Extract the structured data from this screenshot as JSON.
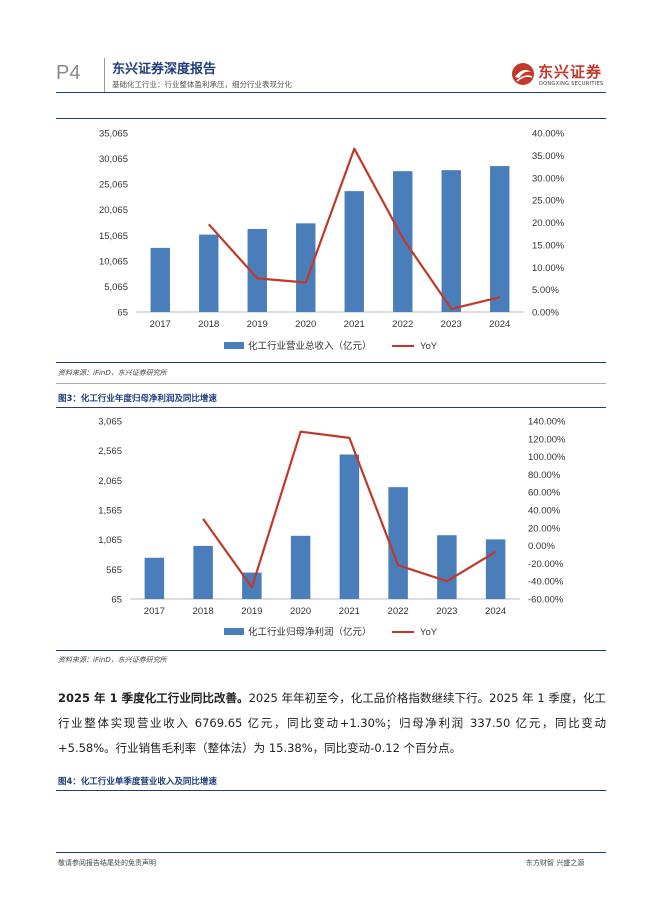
{
  "header": {
    "page_num": "P4",
    "report_title": "东兴证券深度报告",
    "report_subtitle": "基础化工行业：行业整体盈利承压，细分行业表现分化",
    "brand_cn": "东兴证券",
    "brand_en": "DONGXING SECURITIES"
  },
  "charts": {
    "revenue": {
      "source": "资料来源：iFinD，东兴证券研究所"
    },
    "profit": {
      "figure_title": "图3：化工行业年度归母净利润及同比增速",
      "source": "资料来源：iFinD，东兴证券研究所"
    }
  },
  "chart_data": [
    {
      "type": "bar",
      "categories": [
        "2017",
        "2018",
        "2019",
        "2020",
        "2021",
        "2022",
        "2023",
        "2024"
      ],
      "series": [
        {
          "name": "化工行业营业总收入（亿元）",
          "type": "bar",
          "axis": "left",
          "values": [
            12600,
            15200,
            16300,
            17400,
            23700,
            27600,
            27800,
            28600
          ]
        },
        {
          "name": "YoY",
          "type": "line",
          "axis": "right",
          "values": [
            null,
            19.6,
            7.5,
            6.6,
            36.5,
            16.5,
            0.7,
            3.3
          ]
        }
      ],
      "y_left_ticks": [
        "35,065",
        "30,065",
        "25,065",
        "20,065",
        "15,065",
        "10,065",
        "5,065",
        "65"
      ],
      "y_left_range": [
        65,
        35065
      ],
      "y_right_ticks": [
        "40.00%",
        "35.00%",
        "30.00%",
        "25.00%",
        "20.00%",
        "15.00%",
        "10.00%",
        "5.00%",
        "0.00%"
      ],
      "y_right_range": [
        0,
        40
      ],
      "legend_position": "bottom",
      "colors": {
        "bar": "#4a7ebb",
        "line": "#c0392b"
      }
    },
    {
      "type": "bar",
      "categories": [
        "2017",
        "2018",
        "2019",
        "2020",
        "2021",
        "2022",
        "2023",
        "2024"
      ],
      "series": [
        {
          "name": "化工行业归母净利润（亿元）",
          "type": "bar",
          "axis": "left",
          "values": [
            760,
            960,
            510,
            1130,
            2500,
            1950,
            1140,
            1070
          ]
        },
        {
          "name": "YoY",
          "type": "line",
          "axis": "right",
          "values": [
            null,
            30,
            -47,
            128,
            121,
            -22,
            -40,
            -7
          ]
        }
      ],
      "y_left_ticks": [
        "3,065",
        "2,565",
        "2,065",
        "1,565",
        "1,065",
        "565",
        "65"
      ],
      "y_left_range": [
        65,
        3065
      ],
      "y_right_ticks": [
        "140.00%",
        "120.00%",
        "100.00%",
        "80.00%",
        "60.00%",
        "40.00%",
        "20.00%",
        "0.00%",
        "-20.00%",
        "-40.00%",
        "-60.00%"
      ],
      "y_right_range": [
        -60,
        140
      ],
      "legend_position": "bottom",
      "colors": {
        "bar": "#4a7ebb",
        "line": "#c0392b"
      }
    }
  ],
  "body": {
    "lead": "2025 年 1 季度化工行业同比改善。",
    "text": "2025 年年初至今，化工品价格指数继续下行。2025 年 1 季度，化工行业整体实现营业收入 6769.65 亿元，同比变动+1.30%；归母净利润 337.50 亿元，同比变动+5.58%。行业销售毛利率（整体法）为 15.38%，同比变动-0.12 个百分点。"
  },
  "figure4_title": "图4：化工行业单季度营业收入及同比增速",
  "footer": {
    "left": "敬请参阅报告结尾处的免责声明",
    "right": "东方财智  兴盛之源"
  }
}
